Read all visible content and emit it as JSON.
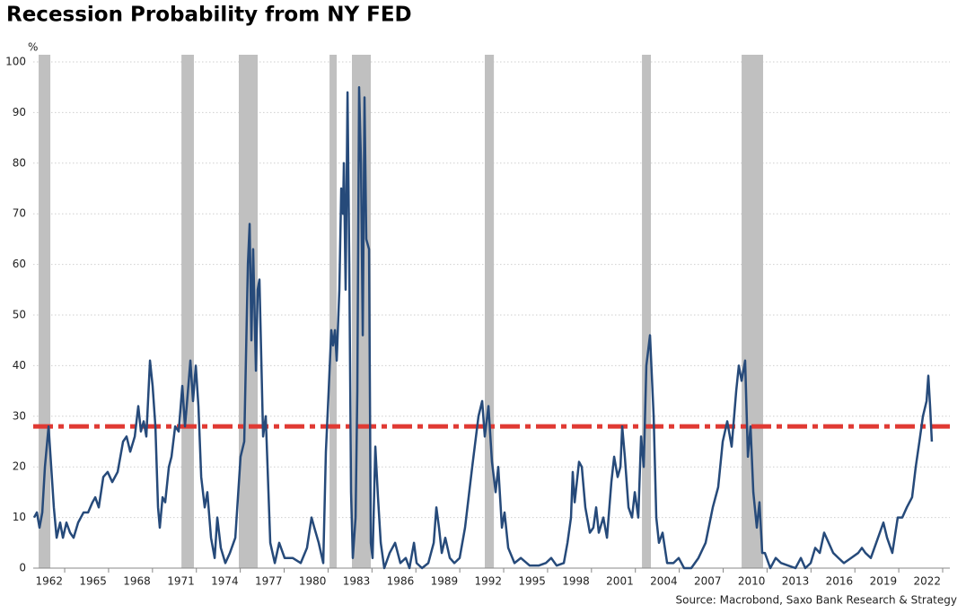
{
  "chart_data": {
    "type": "line",
    "title": "Recession Probability from NY FED",
    "y_label": "%",
    "source": "Source: Macrobond, Saxo Bank Research & Strategy",
    "xlim": [
      1959.85,
      2022.49
    ],
    "xticks": [
      1962,
      1965,
      1968,
      1971,
      1974,
      1977,
      1980,
      1983,
      1986,
      1989,
      1992,
      1995,
      1998,
      2001,
      2004,
      2007,
      2010,
      2013,
      2016,
      2019,
      2022
    ],
    "ylim": [
      0,
      100
    ],
    "yticks": [
      0,
      10,
      20,
      30,
      40,
      50,
      60,
      70,
      80,
      90,
      100
    ],
    "grid": true,
    "shaded_ranges": [
      [
        1960.22,
        1961.02
      ],
      [
        1969.98,
        1970.83
      ],
      [
        1973.9,
        1975.19
      ],
      [
        1980.1,
        1980.59
      ],
      [
        1981.63,
        1982.92
      ],
      [
        1990.71,
        1991.33
      ],
      [
        2001.45,
        2002.06
      ],
      [
        2008.26,
        2009.73
      ]
    ],
    "shaded_color": "#c0c0c0",
    "reference_line": {
      "value": 28,
      "color": "#e03a33"
    },
    "x": [
      1959.91,
      1960.1,
      1960.28,
      1960.47,
      1960.65,
      1960.9,
      1961.08,
      1961.26,
      1961.45,
      1961.69,
      1961.88,
      1962.12,
      1962.37,
      1962.61,
      1962.92,
      1963.29,
      1963.6,
      1963.9,
      1964.09,
      1964.33,
      1964.64,
      1964.94,
      1965.25,
      1965.62,
      1965.99,
      1966.23,
      1966.48,
      1966.79,
      1967.03,
      1967.21,
      1967.4,
      1967.58,
      1967.83,
      1968.01,
      1968.2,
      1968.38,
      1968.5,
      1968.69,
      1968.87,
      1969.12,
      1969.3,
      1969.55,
      1969.79,
      1970.04,
      1970.22,
      1970.34,
      1970.59,
      1970.77,
      1970.96,
      1971.14,
      1971.33,
      1971.57,
      1971.75,
      1972.0,
      1972.25,
      1972.43,
      1972.67,
      1972.98,
      1973.29,
      1973.66,
      1974.02,
      1974.27,
      1974.52,
      1974.64,
      1974.76,
      1974.88,
      1975.07,
      1975.19,
      1975.31,
      1975.56,
      1975.74,
      1976.05,
      1976.36,
      1976.66,
      1977.03,
      1977.58,
      1978.13,
      1978.56,
      1978.87,
      1979.06,
      1979.36,
      1979.67,
      1979.85,
      1980.04,
      1980.22,
      1980.34,
      1980.47,
      1980.59,
      1980.77,
      1980.9,
      1981.02,
      1981.08,
      1981.2,
      1981.33,
      1981.45,
      1981.57,
      1981.69,
      1981.88,
      1982.0,
      1982.12,
      1982.25,
      1982.37,
      1982.49,
      1982.61,
      1982.8,
      1982.92,
      1983.04,
      1983.23,
      1983.41,
      1983.6,
      1983.84,
      1984.21,
      1984.58,
      1984.94,
      1985.31,
      1985.56,
      1985.87,
      1986.05,
      1986.42,
      1986.85,
      1987.22,
      1987.4,
      1987.58,
      1987.77,
      1988.01,
      1988.32,
      1988.63,
      1988.99,
      1989.36,
      1989.85,
      1990.28,
      1990.53,
      1990.71,
      1990.96,
      1991.2,
      1991.45,
      1991.63,
      1991.88,
      1992.06,
      1992.31,
      1992.74,
      1993.17,
      1993.78,
      1994.39,
      1994.88,
      1995.25,
      1995.62,
      1996.11,
      1996.36,
      1996.6,
      1996.72,
      1996.85,
      1997.15,
      1997.34,
      1997.58,
      1997.89,
      1998.13,
      1998.32,
      1998.5,
      1998.81,
      1999.06,
      1999.36,
      1999.55,
      1999.79,
      1999.98,
      2000.1,
      2000.28,
      2000.53,
      2000.77,
      2000.96,
      2001.2,
      2001.39,
      2001.57,
      2001.75,
      2002.0,
      2002.25,
      2002.43,
      2002.61,
      2002.86,
      2003.17,
      2003.6,
      2003.96,
      2004.33,
      2004.82,
      2005.31,
      2005.8,
      2006.29,
      2006.66,
      2006.97,
      2007.28,
      2007.58,
      2007.89,
      2008.07,
      2008.26,
      2008.5,
      2008.69,
      2008.87,
      2009.06,
      2009.3,
      2009.48,
      2009.67,
      2009.85,
      2010.22,
      2010.59,
      2010.96,
      2011.45,
      2011.94,
      2012.31,
      2012.61,
      2012.98,
      2013.29,
      2013.6,
      2013.9,
      2014.21,
      2014.52,
      2014.88,
      2015.25,
      2015.74,
      2016.23,
      2016.48,
      2016.72,
      2017.09,
      2017.46,
      2017.95,
      2018.2,
      2018.56,
      2018.93,
      2019.24,
      2019.55,
      2019.91,
      2020.16,
      2020.41,
      2020.65,
      2020.9,
      2021.02,
      2021.14,
      2021.26
    ],
    "series": [
      {
        "color": "#264a7a",
        "values": [
          10,
          11,
          8,
          11,
          20,
          28,
          20,
          12,
          6,
          9,
          6,
          9,
          7,
          6,
          9,
          11,
          11,
          13,
          14,
          12,
          18,
          19,
          17,
          19,
          25,
          26,
          23,
          26,
          32,
          27,
          29,
          26,
          41,
          36,
          28,
          12,
          8,
          14,
          13,
          20,
          22,
          28,
          27,
          36,
          28,
          32,
          41,
          33,
          40,
          32,
          18,
          12,
          15,
          6,
          2,
          10,
          4,
          1,
          3,
          6,
          22,
          25,
          60,
          68,
          45,
          63,
          39,
          55,
          57,
          26,
          30,
          5,
          1,
          5,
          2,
          2,
          1,
          4,
          10,
          8,
          5,
          1,
          23,
          35,
          47,
          44,
          47,
          41,
          55,
          75,
          70,
          80,
          55,
          94,
          60,
          15,
          2,
          10,
          35,
          95,
          80,
          46,
          93,
          65,
          63,
          5,
          2,
          24,
          14,
          5,
          0,
          3,
          5,
          1,
          2,
          0,
          5,
          1,
          0,
          1,
          5,
          12,
          8,
          3,
          6,
          2,
          1,
          2,
          8,
          20,
          30,
          33,
          26,
          32,
          21,
          15,
          20,
          8,
          11,
          4,
          1,
          2,
          0.5,
          0.5,
          1,
          2,
          0.5,
          1,
          5,
          10,
          19,
          13,
          21,
          20,
          12,
          7,
          8,
          12,
          7,
          10,
          6,
          17,
          22,
          18,
          20,
          28,
          22,
          12,
          10,
          15,
          10,
          26,
          20,
          40,
          46,
          30,
          10,
          5,
          7,
          1,
          1,
          2,
          0,
          0,
          2,
          5,
          12,
          16,
          25,
          29,
          24,
          35,
          40,
          37,
          41,
          22,
          28,
          15,
          8,
          13,
          3,
          3,
          0,
          2,
          1,
          0.5,
          0,
          2,
          0,
          1,
          4,
          3,
          7,
          5,
          3,
          2,
          1,
          2,
          3,
          4,
          3,
          2,
          5,
          9,
          6,
          3,
          10,
          10,
          12,
          14,
          20,
          25,
          30,
          33,
          38,
          32,
          25
        ]
      }
    ]
  }
}
